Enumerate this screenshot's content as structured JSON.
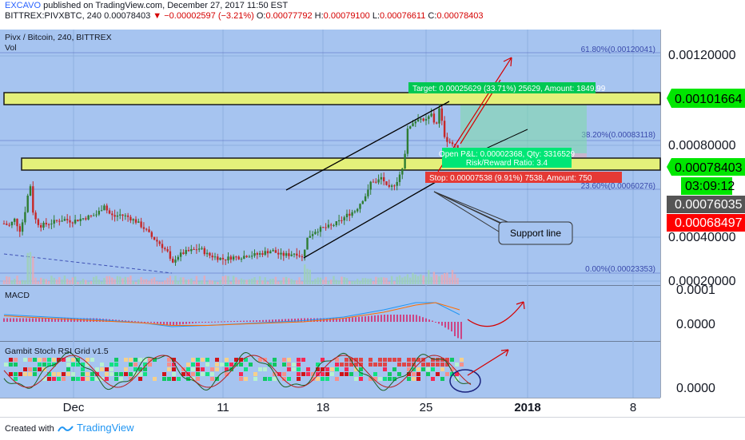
{
  "header": {
    "author": "EXCAVO",
    "published": "published on TradingView.com, December 27, 2017 11:50 EST",
    "symbol_line": "BITTREX:PIVXBTC, 240",
    "last": "0.00078403",
    "change_arrow": "▼",
    "change": "−0.00002597 (−3.21%)",
    "o_label": "O:",
    "o": "0.00077792",
    "h_label": "H:",
    "h": "0.00079100",
    "l_label": "L:",
    "l": "0.00076611",
    "c_label": "C:",
    "c": "0.00078403"
  },
  "pane_main": {
    "title": "Pivx / Bitcoin, 240, BITTREX",
    "vol_label": "Vol"
  },
  "price_axis": {
    "ticks": [
      "0.00120000",
      "0.00080000",
      "0.00040000",
      "0.00020000"
    ],
    "badges": [
      {
        "text": "0.00101664",
        "bg": "#00e600",
        "fg": "#000000"
      },
      {
        "text": "0.00078403",
        "bg": "#00e600",
        "fg": "#000000"
      },
      {
        "text": "03:09:12",
        "bg": "#00e600",
        "fg": "#000000"
      },
      {
        "text": "0.00076035",
        "bg": "#555555",
        "fg": "#ffffff"
      },
      {
        "text": "0.00068497",
        "bg": "#ff0000",
        "fg": "#ffffff"
      }
    ]
  },
  "fib": [
    {
      "label": "61.80%(0.00120041)"
    },
    {
      "label": "38.20%(0.00083118)"
    },
    {
      "label": "23.60%(0.00060276)"
    },
    {
      "label": "0.00%(0.00023353)"
    }
  ],
  "position": {
    "target": "Target: 0.00025629 (33.71%) 25629, Amount: 1849.99",
    "pnl": "Open P&L: 0.00002368, Qty: 3316529",
    "rr": "Risk/Reward Ratio: 3.4",
    "stop": "Stop: 0.00007538 (9.91%) 7538, Amount: 750"
  },
  "callout": "Support line",
  "macd": {
    "title": "MACD",
    "ticks": [
      "0.0001",
      "0.0000"
    ]
  },
  "stoch": {
    "title": "Gambit Stoch RSI Grid v1.5",
    "ticks": [
      "0.0000"
    ]
  },
  "time_axis": [
    "Dec",
    "11",
    "18",
    "25",
    "2018",
    "8"
  ],
  "footer": {
    "created": "Created with",
    "brand": "TradingView"
  },
  "colors": {
    "pane_bg": "#a6c4f0",
    "zone": "#e4f07a",
    "up": "#2e7d32",
    "down": "#c62828",
    "accent": "#2196f3"
  },
  "chart_data": {
    "type": "candlestick",
    "symbol": "BITTREX:PIVXBTC",
    "interval": "240",
    "ylim": [
      0.00015,
      0.00135
    ],
    "price_path": [
      [
        0,
        0.00047
      ],
      [
        5,
        0.00045
      ],
      [
        12,
        0.00044
      ],
      [
        18,
        0.00047
      ],
      [
        25,
        0.00042
      ],
      [
        30,
        0.00048
      ],
      [
        35,
        0.00058
      ],
      [
        38,
        0.00062
      ],
      [
        42,
        0.00048
      ],
      [
        50,
        0.00044
      ],
      [
        60,
        0.00045
      ],
      [
        70,
        0.00046
      ],
      [
        80,
        0.00047
      ],
      [
        90,
        0.00046
      ],
      [
        100,
        0.00047
      ],
      [
        110,
        0.00048
      ],
      [
        120,
        0.00049
      ],
      [
        126,
        0.00051
      ],
      [
        130,
        0.00054
      ],
      [
        135,
        0.0005
      ],
      [
        142,
        0.00048
      ],
      [
        150,
        0.00049
      ],
      [
        160,
        0.00048
      ],
      [
        170,
        0.00046
      ],
      [
        180,
        0.00043
      ],
      [
        190,
        0.00039
      ],
      [
        200,
        0.00036
      ],
      [
        210,
        0.00032
      ],
      [
        215,
        0.00026
      ],
      [
        220,
        0.0003
      ],
      [
        230,
        0.00032
      ],
      [
        240,
        0.00033
      ],
      [
        250,
        0.00034
      ],
      [
        260,
        0.00031
      ],
      [
        270,
        0.0003
      ],
      [
        280,
        0.00029
      ],
      [
        290,
        0.0003
      ],
      [
        300,
        0.0003
      ],
      [
        310,
        0.00031
      ],
      [
        320,
        0.00031
      ],
      [
        330,
        0.00032
      ],
      [
        340,
        0.00033
      ],
      [
        350,
        0.00031
      ],
      [
        360,
        0.00031
      ],
      [
        370,
        0.00032
      ],
      [
        378,
        0.0003
      ],
      [
        385,
        0.00039
      ],
      [
        395,
        0.00042
      ],
      [
        405,
        0.00043
      ],
      [
        415,
        0.00044
      ],
      [
        425,
        0.00046
      ],
      [
        435,
        0.00049
      ],
      [
        445,
        0.00051
      ],
      [
        452,
        0.00055
      ],
      [
        460,
        0.00059
      ],
      [
        465,
        0.00065
      ],
      [
        470,
        0.00063
      ],
      [
        478,
        0.00066
      ],
      [
        485,
        0.0006
      ],
      [
        492,
        0.00062
      ],
      [
        498,
        0.00065
      ],
      [
        505,
        0.00072
      ],
      [
        510,
        0.00087
      ],
      [
        515,
        0.0009
      ],
      [
        520,
        0.00091
      ],
      [
        525,
        0.00093
      ],
      [
        530,
        0.0009
      ],
      [
        535,
        0.00092
      ],
      [
        540,
        0.00094
      ],
      [
        545,
        0.00088
      ],
      [
        550,
        0.00097
      ],
      [
        555,
        0.00085
      ],
      [
        560,
        0.00082
      ],
      [
        565,
        0.00081
      ],
      [
        570,
        0.00079
      ],
      [
        575,
        0.00078
      ]
    ],
    "support_line": [
      [
        380,
        0.0003
      ],
      [
        545,
        0.00065
      ]
    ],
    "resistance_line": [
      [
        360,
        0.0006
      ],
      [
        560,
        0.00095
      ]
    ],
    "zones": [
      {
        "from": 0.00099,
        "to": 0.00105
      },
      {
        "from": 0.00073,
        "to": 0.00077
      }
    ],
    "position": {
      "entry": 0.00075867,
      "target": 0.00101496,
      "stop": 0.00068329
    },
    "macd": [
      [
        5,
        3e-05
      ],
      [
        60,
        2e-05
      ],
      [
        120,
        1e-05
      ],
      [
        180,
        -5e-06
      ],
      [
        215,
        -2e-05
      ],
      [
        260,
        -1.5e-05
      ],
      [
        320,
        -5e-06
      ],
      [
        380,
        5e-06
      ],
      [
        430,
        2e-05
      ],
      [
        480,
        5e-05
      ],
      [
        520,
        8e-05
      ],
      [
        545,
        8e-05
      ],
      [
        575,
        3e-05
      ]
    ],
    "signal": [
      [
        5,
        2.5e-05
      ],
      [
        60,
        1.5e-05
      ],
      [
        120,
        5e-06
      ],
      [
        180,
        -5e-06
      ],
      [
        215,
        -1.5e-05
      ],
      [
        260,
        -1.5e-05
      ],
      [
        320,
        -7e-06
      ],
      [
        380,
        0.0
      ],
      [
        430,
        1.5e-05
      ],
      [
        480,
        4e-05
      ],
      [
        520,
        7e-05
      ],
      [
        545,
        8e-05
      ],
      [
        575,
        5e-05
      ]
    ]
  }
}
